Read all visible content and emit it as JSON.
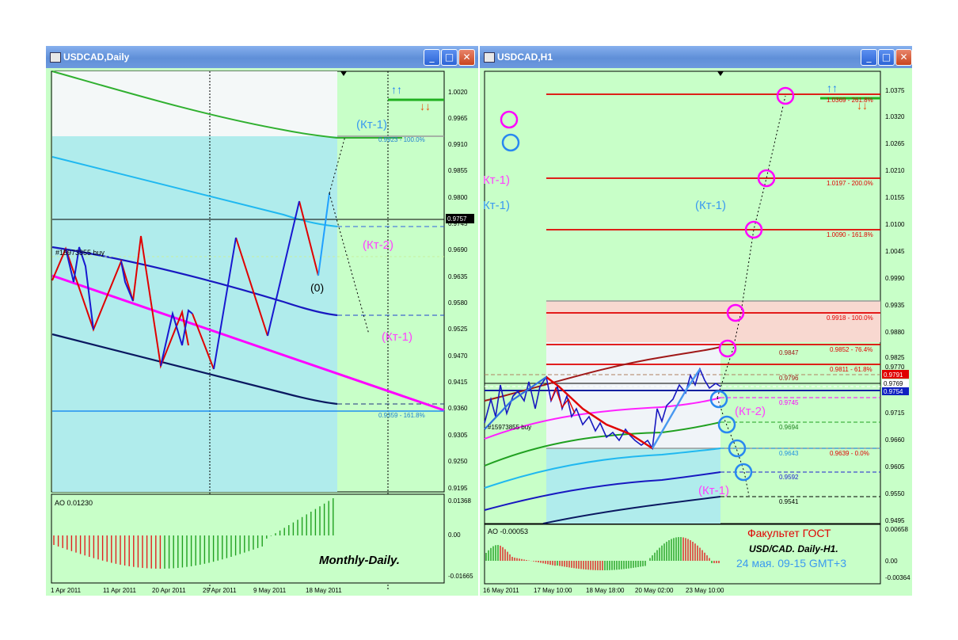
{
  "left": {
    "title": "USDCAD,Daily",
    "ao_label": "AO 0.01230",
    "buy_label": "#15973855 buy",
    "watermark": "Monthly-Daily.",
    "marker_zero": "(0)",
    "annotations": {
      "kt1_top": "(Кт-1)",
      "kt2": "(Кт-2)",
      "kt1_bottom": "(Кт-1)"
    },
    "fib_labels": [
      "0.9923 - 100.0%",
      "0.9359 - 161.8%"
    ],
    "price_axis": [
      "1.0020",
      "0.9965",
      "0.9910",
      "0.9855",
      "0.9800",
      "0.9745",
      "0.9690",
      "0.9635",
      "0.9580",
      "0.9525",
      "0.9470",
      "0.9415",
      "0.9360",
      "0.9305",
      "0.9250",
      "0.9195"
    ],
    "current_price": "0.9757",
    "ao_axis": [
      "0.01368",
      "0.00",
      "-0.01665"
    ],
    "date_axis": [
      "1 Apr 2011",
      "11 Apr 2011",
      "20 Apr 2011",
      "29 Apr 2011",
      "9 May 2011",
      "18 May 2011"
    ]
  },
  "right": {
    "title": "USDCAD,H1",
    "ao_label": "AO -0.00053",
    "buy_label": "#15973855 buy",
    "annotations": {
      "kt1_upper": "(Кт-1)",
      "kt1_lower_left": "Кт-1)",
      "kt1_lower_left2": "Кт-1)",
      "kt2": "(Кт-2)",
      "kt1_bottom": "(Кт-1)"
    },
    "fib_levels": [
      "1.0369 - 261.8%",
      "1.0197 - 200.0%",
      "1.0090 - 161.8%",
      "0.9918 - 100.0%",
      "0.9852 - 76.4%",
      "0.9811 - 61.8%",
      "0.9639 - 0.0%"
    ],
    "level_labels": [
      "0.9847",
      "0.9796",
      "0.9745",
      "0.9694",
      "0.9643",
      "0.9592",
      "0.9541"
    ],
    "price_axis": [
      "1.0375",
      "1.0320",
      "1.0265",
      "1.0210",
      "1.0155",
      "1.0100",
      "1.0045",
      "0.9990",
      "0.9935",
      "0.9880",
      "0.9825",
      "0.9770",
      "0.9715",
      "0.9660",
      "0.9605",
      "0.9550",
      "0.9495"
    ],
    "price_tags": [
      "0.9791",
      "0.9769",
      "0.9754"
    ],
    "ao_axis": [
      "0.00658",
      "0.00",
      "-0.00364"
    ],
    "date_axis": [
      "16 May 2011",
      "17 May 10:00",
      "18 May 18:00",
      "20 May 02:00",
      "23 May 10:00"
    ],
    "caption": {
      "line1": "Факультет ГОСТ",
      "line2": "USD/CAD. Daily-H1.",
      "line3": "24 мая. 09-15 GMT+3"
    }
  },
  "window_buttons": {
    "minimize": "_",
    "maximize": "□",
    "close": "✕"
  },
  "colors": {
    "chart_bg": "#c8ffc8",
    "cyan_zone": "#b2ecec",
    "red_line": "#e00000",
    "magenta": "#ff00ff",
    "blue": "#2020d0"
  }
}
